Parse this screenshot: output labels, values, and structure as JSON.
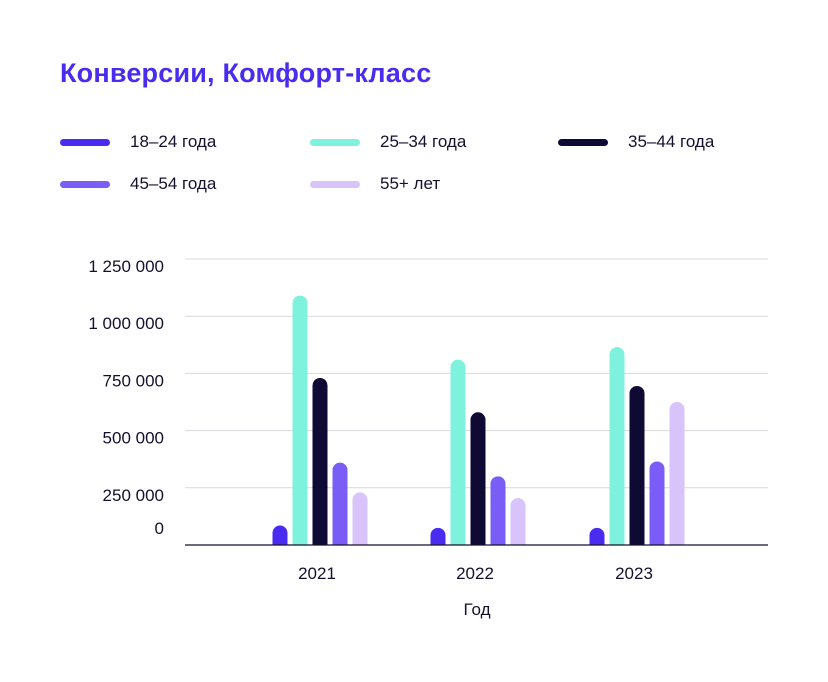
{
  "title": "Конверсии, Комфорт-класс",
  "legend": [
    {
      "label": "18–24 года",
      "color": "#4a2bf0"
    },
    {
      "label": "25–34 года",
      "color": "#7ef2dc"
    },
    {
      "label": "35–44 года",
      "color": "#0f0a33"
    },
    {
      "label": "45–54 года",
      "color": "#7a5cf6"
    },
    {
      "label": "55+ лет",
      "color": "#d8c3fb"
    }
  ],
  "chart_data": {
    "type": "bar",
    "title": "Конверсии, Комфорт-класс",
    "xlabel": "Год",
    "ylabel": "",
    "categories": [
      "2021",
      "2022",
      "2023"
    ],
    "ylim": [
      0,
      1250000
    ],
    "yticks": [
      0,
      250000,
      500000,
      750000,
      1000000,
      1250000
    ],
    "ytick_labels": [
      "0",
      "250 000",
      "500 000",
      "750 000",
      "1 000 000",
      "1 250 000"
    ],
    "grid": true,
    "legend_position": "top",
    "series": [
      {
        "name": "18–24 года",
        "color": "#4a2bf0",
        "values": [
          85000,
          75000,
          75000
        ]
      },
      {
        "name": "25–34 года",
        "color": "#7ef2dc",
        "values": [
          1090000,
          810000,
          865000
        ]
      },
      {
        "name": "35–44 года",
        "color": "#0f0a33",
        "values": [
          730000,
          580000,
          695000
        ]
      },
      {
        "name": "45–54 года",
        "color": "#7a5cf6",
        "values": [
          360000,
          300000,
          365000
        ]
      },
      {
        "name": "55+ лет",
        "color": "#d8c3fb",
        "values": [
          230000,
          205000,
          625000
        ]
      }
    ]
  }
}
